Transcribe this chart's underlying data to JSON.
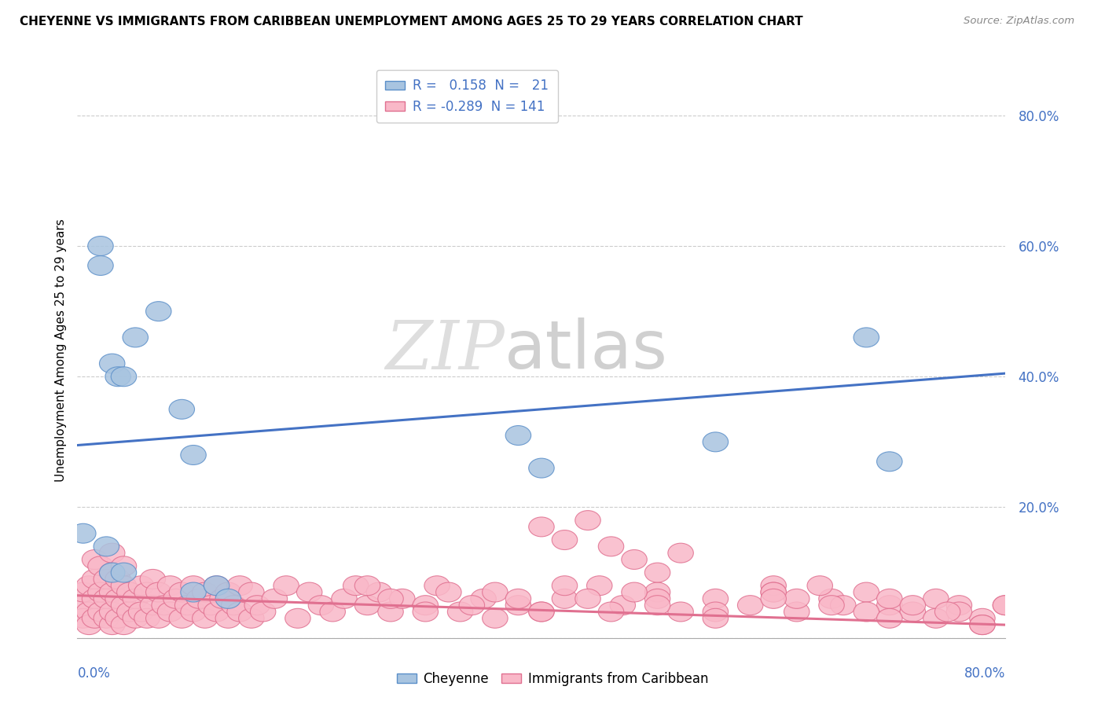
{
  "title": "CHEYENNE VS IMMIGRANTS FROM CARIBBEAN UNEMPLOYMENT AMONG AGES 25 TO 29 YEARS CORRELATION CHART",
  "source": "Source: ZipAtlas.com",
  "ylabel": "Unemployment Among Ages 25 to 29 years",
  "legend_bottom": [
    "Cheyenne",
    "Immigrants from Caribbean"
  ],
  "xlim": [
    0.0,
    0.8
  ],
  "ylim": [
    0.0,
    0.88
  ],
  "cheyenne_color": "#a8c4e0",
  "caribbean_color": "#f9b8c8",
  "cheyenne_edge_color": "#5b8fc9",
  "caribbean_edge_color": "#e07090",
  "cheyenne_line_color": "#4472c4",
  "caribbean_line_color": "#e07090",
  "cheyenne_x": [
    0.005,
    0.02,
    0.02,
    0.025,
    0.03,
    0.03,
    0.035,
    0.04,
    0.04,
    0.05,
    0.07,
    0.09,
    0.1,
    0.1,
    0.12,
    0.13,
    0.38,
    0.4,
    0.55,
    0.68,
    0.7
  ],
  "cheyenne_y": [
    0.16,
    0.6,
    0.57,
    0.14,
    0.1,
    0.42,
    0.4,
    0.4,
    0.1,
    0.46,
    0.5,
    0.35,
    0.28,
    0.07,
    0.08,
    0.06,
    0.31,
    0.26,
    0.3,
    0.46,
    0.27
  ],
  "caribbean_x": [
    0.005,
    0.005,
    0.005,
    0.01,
    0.01,
    0.01,
    0.015,
    0.015,
    0.015,
    0.015,
    0.02,
    0.02,
    0.02,
    0.025,
    0.025,
    0.025,
    0.03,
    0.03,
    0.03,
    0.03,
    0.03,
    0.035,
    0.035,
    0.035,
    0.04,
    0.04,
    0.04,
    0.04,
    0.045,
    0.045,
    0.05,
    0.05,
    0.055,
    0.055,
    0.06,
    0.06,
    0.065,
    0.065,
    0.07,
    0.07,
    0.075,
    0.08,
    0.08,
    0.085,
    0.09,
    0.09,
    0.095,
    0.1,
    0.1,
    0.105,
    0.11,
    0.11,
    0.115,
    0.12,
    0.12,
    0.125,
    0.13,
    0.13,
    0.135,
    0.14,
    0.14,
    0.15,
    0.15,
    0.155,
    0.16,
    0.17,
    0.18,
    0.19,
    0.2,
    0.21,
    0.22,
    0.23,
    0.24,
    0.25,
    0.26,
    0.27,
    0.28,
    0.3,
    0.31,
    0.33,
    0.35,
    0.36,
    0.38,
    0.4,
    0.42,
    0.45,
    0.47,
    0.5,
    0.52,
    0.55,
    0.58,
    0.6,
    0.62,
    0.65,
    0.68,
    0.7,
    0.72,
    0.74,
    0.76,
    0.78,
    0.4,
    0.42,
    0.44,
    0.46,
    0.48,
    0.5,
    0.52,
    0.6,
    0.62,
    0.64,
    0.66,
    0.68,
    0.7,
    0.72,
    0.74,
    0.76,
    0.78,
    0.8,
    0.5,
    0.55,
    0.6,
    0.65,
    0.7,
    0.75,
    0.78,
    0.8,
    0.25,
    0.27,
    0.3,
    0.32,
    0.34,
    0.36,
    0.38,
    0.4,
    0.42,
    0.44,
    0.46,
    0.48,
    0.5,
    0.55,
    0.6
  ],
  "caribbean_y": [
    0.05,
    0.03,
    0.07,
    0.04,
    0.08,
    0.02,
    0.03,
    0.06,
    0.09,
    0.12,
    0.04,
    0.07,
    0.11,
    0.03,
    0.06,
    0.09,
    0.02,
    0.04,
    0.07,
    0.1,
    0.13,
    0.03,
    0.06,
    0.09,
    0.02,
    0.05,
    0.08,
    0.11,
    0.04,
    0.07,
    0.03,
    0.06,
    0.04,
    0.08,
    0.03,
    0.07,
    0.05,
    0.09,
    0.03,
    0.07,
    0.05,
    0.04,
    0.08,
    0.06,
    0.03,
    0.07,
    0.05,
    0.04,
    0.08,
    0.06,
    0.03,
    0.07,
    0.05,
    0.04,
    0.08,
    0.06,
    0.03,
    0.07,
    0.05,
    0.04,
    0.08,
    0.03,
    0.07,
    0.05,
    0.04,
    0.06,
    0.08,
    0.03,
    0.07,
    0.05,
    0.04,
    0.06,
    0.08,
    0.05,
    0.07,
    0.04,
    0.06,
    0.05,
    0.08,
    0.04,
    0.06,
    0.07,
    0.05,
    0.04,
    0.06,
    0.08,
    0.05,
    0.07,
    0.04,
    0.06,
    0.05,
    0.08,
    0.04,
    0.06,
    0.07,
    0.05,
    0.04,
    0.06,
    0.05,
    0.03,
    0.17,
    0.15,
    0.18,
    0.14,
    0.12,
    0.1,
    0.13,
    0.07,
    0.06,
    0.08,
    0.05,
    0.04,
    0.06,
    0.05,
    0.03,
    0.04,
    0.02,
    0.05,
    0.06,
    0.04,
    0.07,
    0.05,
    0.03,
    0.04,
    0.02,
    0.05,
    0.08,
    0.06,
    0.04,
    0.07,
    0.05,
    0.03,
    0.06,
    0.04,
    0.08,
    0.06,
    0.04,
    0.07,
    0.05,
    0.03,
    0.06
  ],
  "cheyenne_R": 0.158,
  "caribbean_R": -0.289,
  "cheyenne_N": 21,
  "caribbean_N": 141,
  "chey_line_y0": 0.295,
  "chey_line_y1": 0.405,
  "carib_line_y0": 0.065,
  "carib_line_y1": 0.02
}
